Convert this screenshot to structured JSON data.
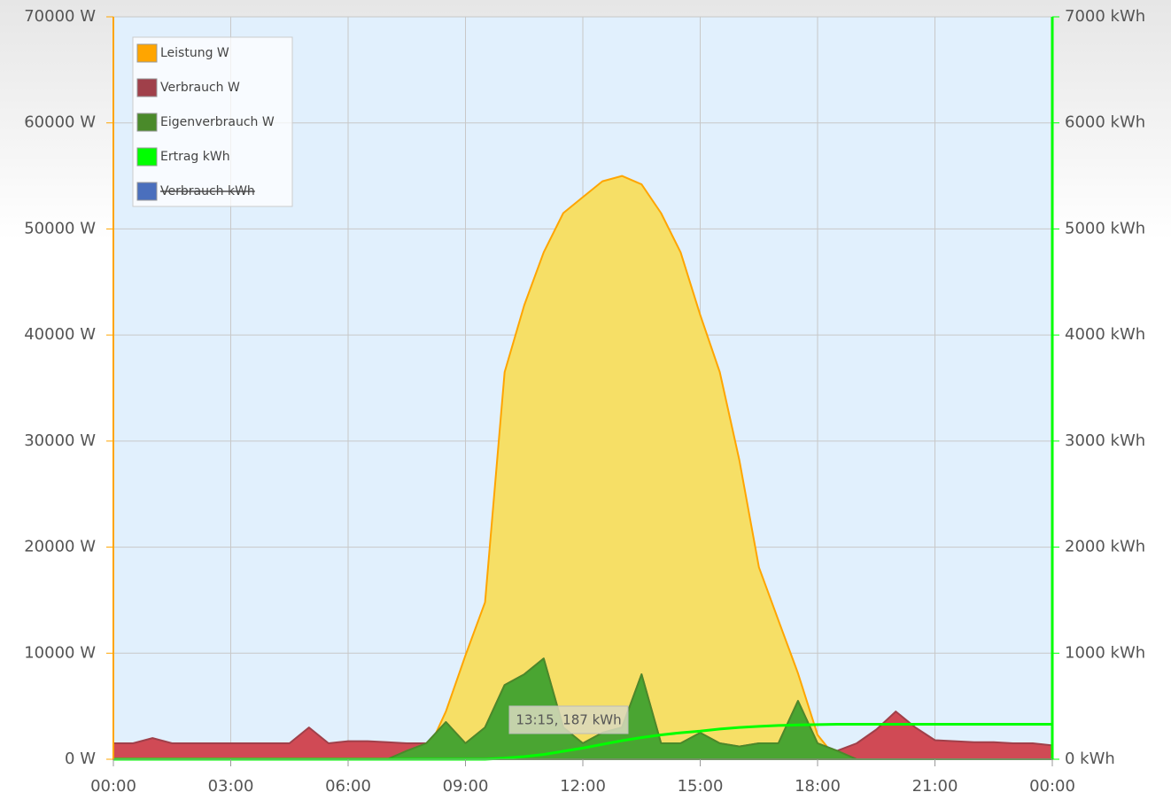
{
  "chart_data": {
    "type": "area",
    "x": [
      0,
      0.5,
      1,
      1.5,
      2,
      2.5,
      3,
      3.5,
      4,
      4.5,
      5,
      5.5,
      6,
      6.5,
      7,
      7.5,
      8,
      8.5,
      9,
      9.5,
      10,
      10.5,
      11,
      11.5,
      12,
      12.5,
      13,
      13.5,
      14,
      14.5,
      15,
      15.5,
      16,
      16.5,
      17,
      17.5,
      18,
      18.5,
      19,
      19.5,
      20,
      20.5,
      21,
      21.5,
      22,
      22.5,
      23,
      23.5,
      24
    ],
    "series": [
      {
        "name": "Leistung W",
        "color": "#ffa500",
        "fill": "#f6df66",
        "values": [
          0,
          0,
          0,
          0,
          0,
          0,
          0,
          0,
          0,
          0,
          0,
          0,
          0,
          0,
          0,
          0,
          500,
          4500,
          9800,
          14800,
          36500,
          42800,
          47800,
          51500,
          53000,
          54500,
          55000,
          54200,
          51500,
          47800,
          41900,
          36500,
          28200,
          18100,
          13100,
          8100,
          2300,
          0,
          0,
          0,
          0,
          0,
          0,
          0,
          0,
          0,
          0,
          0,
          0
        ]
      },
      {
        "name": "Verbrauch W",
        "color": "#a0404a",
        "fill": "#d04a55",
        "values": [
          1500,
          1500,
          2000,
          1500,
          1500,
          1500,
          1500,
          1500,
          1500,
          1500,
          3000,
          1500,
          1700,
          1700,
          1600,
          1500,
          1500,
          3500,
          1500,
          3000,
          7000,
          8000,
          9500,
          3000,
          1500,
          2500,
          3000,
          8000,
          1500,
          1500,
          2500,
          1500,
          1200,
          1500,
          1500,
          5500,
          1500,
          800,
          1500,
          2800,
          4500,
          3000,
          1800,
          1700,
          1600,
          1600,
          1500,
          1500,
          1300
        ]
      },
      {
        "name": "Eigenverbrauch W",
        "color": "#4a8a2a",
        "fill": "#4aa532",
        "values": [
          0,
          0,
          0,
          0,
          0,
          0,
          0,
          0,
          0,
          0,
          0,
          0,
          0,
          0,
          0,
          800,
          1500,
          3500,
          1500,
          3000,
          7000,
          8000,
          9500,
          3000,
          1500,
          2500,
          3000,
          8000,
          1500,
          1500,
          2500,
          1500,
          1200,
          1500,
          1500,
          5500,
          1500,
          800,
          0,
          0,
          0,
          0,
          0,
          0,
          0,
          0,
          0,
          0,
          0
        ]
      },
      {
        "name": "Ertrag kWh",
        "color": "#00ff00",
        "axis": "y2",
        "values": [
          0,
          0,
          0,
          0,
          0,
          0,
          0,
          0,
          0,
          0,
          0,
          0,
          0,
          0,
          0,
          0,
          0,
          0,
          0,
          0,
          10,
          25,
          45,
          75,
          105,
          140,
          175,
          205,
          230,
          250,
          265,
          285,
          300,
          310,
          318,
          323,
          327,
          330,
          330,
          330,
          330,
          330,
          330,
          330,
          330,
          330,
          330,
          330,
          330
        ]
      },
      {
        "name": "Verbrauch kWh",
        "color": "#4a6fbd",
        "axis": "y2",
        "hidden": true
      }
    ],
    "xlim": [
      0,
      24
    ],
    "xticks": [
      {
        "value": 0,
        "label": "00:00"
      },
      {
        "value": 3,
        "label": "03:00"
      },
      {
        "value": 6,
        "label": "06:00"
      },
      {
        "value": 9,
        "label": "09:00"
      },
      {
        "value": 12,
        "label": "12:00"
      },
      {
        "value": 15,
        "label": "15:00"
      },
      {
        "value": 18,
        "label": "18:00"
      },
      {
        "value": 21,
        "label": "21:00"
      },
      {
        "value": 24,
        "label": "00:00"
      }
    ],
    "ylim": [
      0,
      70000
    ],
    "yticks": [
      {
        "value": 0,
        "label": "0 W"
      },
      {
        "value": 10000,
        "label": "10000 W"
      },
      {
        "value": 20000,
        "label": "20000 W"
      },
      {
        "value": 30000,
        "label": "30000 W"
      },
      {
        "value": 40000,
        "label": "40000 W"
      },
      {
        "value": 50000,
        "label": "50000 W"
      },
      {
        "value": 60000,
        "label": "60000 W"
      },
      {
        "value": 70000,
        "label": "70000 W"
      }
    ],
    "y2lim": [
      0,
      7000
    ],
    "y2ticks": [
      {
        "value": 0,
        "label": "0 kWh"
      },
      {
        "value": 1000,
        "label": "1000 kWh"
      },
      {
        "value": 2000,
        "label": "2000 kWh"
      },
      {
        "value": 3000,
        "label": "3000 kWh"
      },
      {
        "value": 4000,
        "label": "4000 kWh"
      },
      {
        "value": 5000,
        "label": "5000 kWh"
      },
      {
        "value": 6000,
        "label": "6000 kWh"
      },
      {
        "value": 7000,
        "label": "7000 kWh"
      }
    ],
    "grid": true,
    "legend": "upper left",
    "tooltip": "13:15, 187 kWh"
  }
}
